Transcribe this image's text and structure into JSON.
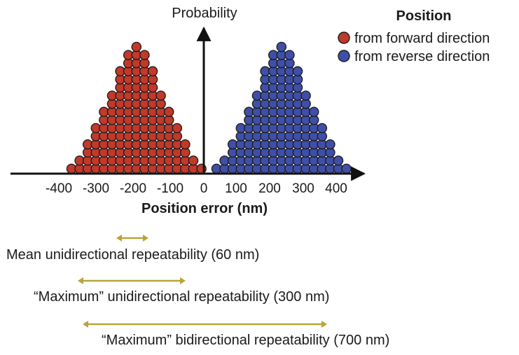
{
  "axes": {
    "y_label": "Probability",
    "x_label": "Position error (nm)",
    "x_ticks": [
      "-400",
      "-300",
      "-200",
      "-100",
      "0",
      "100",
      "200",
      "300",
      "400"
    ]
  },
  "legend": {
    "title": "Position",
    "items": [
      {
        "label": "from forward direction",
        "color": "#c0392b"
      },
      {
        "label": "from reverse direction",
        "color": "#3f4fa8"
      }
    ]
  },
  "colors": {
    "forward": "#c0392b",
    "reverse": "#3f4fa8",
    "arrow": "#b9a43a",
    "axis": "#111111",
    "dot_outline": "#1a1a1a"
  },
  "distributions": [
    {
      "name": "forward",
      "columns": [
        1,
        2,
        4,
        6,
        8,
        10,
        13,
        15,
        16,
        15,
        13,
        10,
        8,
        6,
        4,
        2,
        1
      ]
    },
    {
      "name": "reverse",
      "columns": [
        1,
        2,
        4,
        6,
        8,
        10,
        13,
        15,
        16,
        15,
        13,
        10,
        8,
        6,
        4,
        2,
        1
      ]
    }
  ],
  "annotations": [
    {
      "label": "Mean unidirectional repeatability (60 nm)"
    },
    {
      "label": "“Maximum” unidirectional repeatability (300 nm)"
    },
    {
      "label": "“Maximum” bidirectional repeatability (700 nm)"
    }
  ]
}
